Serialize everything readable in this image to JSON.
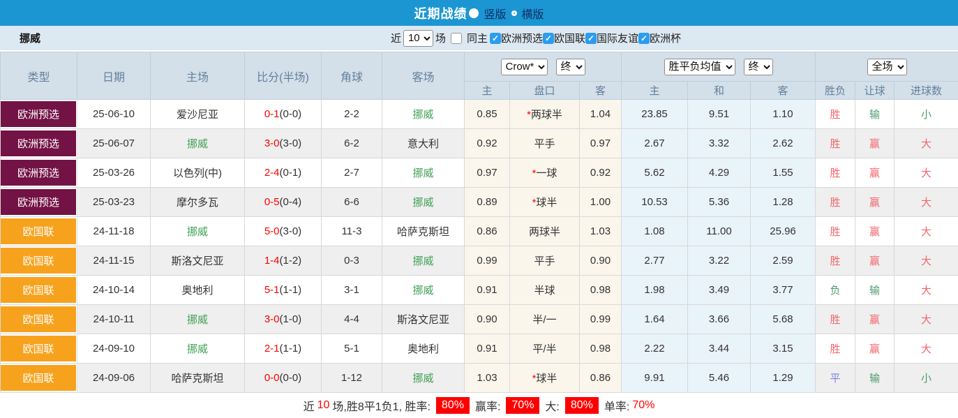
{
  "titlebar": {
    "title": "近期战绩",
    "radio_vertical": "竖版",
    "radio_horizontal": "横版"
  },
  "filterbar": {
    "team": "挪威",
    "recent_label": "近",
    "recent_count": "10",
    "matches_label": "场",
    "same_home_label": "同主",
    "competitions": [
      "欧洲预选",
      "欧国联",
      "国际友谊",
      "欧洲杯"
    ]
  },
  "table": {
    "selects": {
      "odds_company": "Crow*",
      "odds_state1": "终",
      "avg_type": "胜平负均值",
      "odds_state2": "终",
      "scope": "全场"
    },
    "columns": [
      "类型",
      "日期",
      "主场",
      "比分(半场)",
      "角球",
      "客场"
    ],
    "sub_columns": [
      "主",
      "盘口",
      "客",
      "主",
      "和",
      "客",
      "胜负",
      "让球",
      "进球数"
    ],
    "rows": [
      {
        "type": "欧洲预选",
        "type_class": "maroon",
        "date": "25-06-10",
        "home": "爱沙尼亚",
        "home_green": false,
        "score": "0-1",
        "half": "(0-0)",
        "corner": "2-2",
        "away": "挪威",
        "away_green": true,
        "odds_home": "0.85",
        "handicap_star": true,
        "handicap": "两球半",
        "odds_away": "1.04",
        "avg_home": "23.85",
        "avg_draw": "9.51",
        "avg_away": "1.10",
        "result": "胜",
        "result_color": "red",
        "bet": "输",
        "bet_color": "green",
        "goal": "小",
        "goal_color": "green"
      },
      {
        "type": "欧洲预选",
        "type_class": "maroon",
        "date": "25-06-07",
        "home": "挪威",
        "home_green": true,
        "score": "3-0",
        "half": "(3-0)",
        "corner": "6-2",
        "away": "意大利",
        "away_green": false,
        "odds_home": "0.92",
        "handicap_star": false,
        "handicap": "平手",
        "odds_away": "0.97",
        "avg_home": "2.67",
        "avg_draw": "3.32",
        "avg_away": "2.62",
        "result": "胜",
        "result_color": "red",
        "bet": "赢",
        "bet_color": "red",
        "goal": "大",
        "goal_color": "red"
      },
      {
        "type": "欧洲预选",
        "type_class": "maroon",
        "date": "25-03-26",
        "home": "以色列(中)",
        "home_green": false,
        "score": "2-4",
        "half": "(0-1)",
        "corner": "2-7",
        "away": "挪威",
        "away_green": true,
        "odds_home": "0.97",
        "handicap_star": true,
        "handicap": "一球",
        "odds_away": "0.92",
        "avg_home": "5.62",
        "avg_draw": "4.29",
        "avg_away": "1.55",
        "result": "胜",
        "result_color": "red",
        "bet": "赢",
        "bet_color": "red",
        "goal": "大",
        "goal_color": "red"
      },
      {
        "type": "欧洲预选",
        "type_class": "maroon",
        "date": "25-03-23",
        "home": "摩尔多瓦",
        "home_green": false,
        "score": "0-5",
        "half": "(0-4)",
        "corner": "6-6",
        "away": "挪威",
        "away_green": true,
        "odds_home": "0.89",
        "handicap_star": true,
        "handicap": "球半",
        "odds_away": "1.00",
        "avg_home": "10.53",
        "avg_draw": "5.36",
        "avg_away": "1.28",
        "result": "胜",
        "result_color": "red",
        "bet": "赢",
        "bet_color": "red",
        "goal": "大",
        "goal_color": "red"
      },
      {
        "type": "欧国联",
        "type_class": "orange",
        "date": "24-11-18",
        "home": "挪威",
        "home_green": true,
        "score": "5-0",
        "half": "(3-0)",
        "corner": "11-3",
        "away": "哈萨克斯坦",
        "away_green": false,
        "odds_home": "0.86",
        "handicap_star": false,
        "handicap": "两球半",
        "odds_away": "1.03",
        "avg_home": "1.08",
        "avg_draw": "11.00",
        "avg_away": "25.96",
        "result": "胜",
        "result_color": "red",
        "bet": "赢",
        "bet_color": "red",
        "goal": "大",
        "goal_color": "red"
      },
      {
        "type": "欧国联",
        "type_class": "orange",
        "date": "24-11-15",
        "home": "斯洛文尼亚",
        "home_green": false,
        "score": "1-4",
        "half": "(1-2)",
        "corner": "0-3",
        "away": "挪威",
        "away_green": true,
        "odds_home": "0.99",
        "handicap_star": false,
        "handicap": "平手",
        "odds_away": "0.90",
        "avg_home": "2.77",
        "avg_draw": "3.22",
        "avg_away": "2.59",
        "result": "胜",
        "result_color": "red",
        "bet": "赢",
        "bet_color": "red",
        "goal": "大",
        "goal_color": "red"
      },
      {
        "type": "欧国联",
        "type_class": "orange",
        "date": "24-10-14",
        "home": "奥地利",
        "home_green": false,
        "score": "5-1",
        "half": "(1-1)",
        "corner": "3-1",
        "away": "挪威",
        "away_green": true,
        "odds_home": "0.91",
        "handicap_star": false,
        "handicap": "半球",
        "odds_away": "0.98",
        "avg_home": "1.98",
        "avg_draw": "3.49",
        "avg_away": "3.77",
        "result": "负",
        "result_color": "green",
        "bet": "输",
        "bet_color": "green",
        "goal": "大",
        "goal_color": "red"
      },
      {
        "type": "欧国联",
        "type_class": "orange",
        "date": "24-10-11",
        "home": "挪威",
        "home_green": true,
        "score": "3-0",
        "half": "(1-0)",
        "corner": "4-4",
        "away": "斯洛文尼亚",
        "away_green": false,
        "odds_home": "0.90",
        "handicap_star": false,
        "handicap": "半/一",
        "odds_away": "0.99",
        "avg_home": "1.64",
        "avg_draw": "3.66",
        "avg_away": "5.68",
        "result": "胜",
        "result_color": "red",
        "bet": "赢",
        "bet_color": "red",
        "goal": "大",
        "goal_color": "red"
      },
      {
        "type": "欧国联",
        "type_class": "orange",
        "date": "24-09-10",
        "home": "挪威",
        "home_green": true,
        "score": "2-1",
        "half": "(1-1)",
        "corner": "5-1",
        "away": "奥地利",
        "away_green": false,
        "odds_home": "0.91",
        "handicap_star": false,
        "handicap": "平/半",
        "odds_away": "0.98",
        "avg_home": "2.22",
        "avg_draw": "3.44",
        "avg_away": "3.15",
        "result": "胜",
        "result_color": "red",
        "bet": "赢",
        "bet_color": "red",
        "goal": "大",
        "goal_color": "red"
      },
      {
        "type": "欧国联",
        "type_class": "orange",
        "date": "24-09-06",
        "home": "哈萨克斯坦",
        "home_green": false,
        "score": "0-0",
        "half": "(0-0)",
        "corner": "1-12",
        "away": "挪威",
        "away_green": true,
        "odds_home": "1.03",
        "handicap_star": true,
        "handicap": "球半",
        "odds_away": "0.86",
        "avg_home": "9.91",
        "avg_draw": "5.46",
        "avg_away": "1.29",
        "result": "平",
        "result_color": "blue",
        "bet": "输",
        "bet_color": "green",
        "goal": "小",
        "goal_color": "green"
      }
    ]
  },
  "footer": {
    "prefix": "近",
    "count": "10",
    "summary": "场,胜8平1负1, 胜率:",
    "win_rate": "80%",
    "bet_label": "赢率:",
    "bet_rate": "70%",
    "big_label": "大:",
    "big_rate": "80%",
    "single_label": "单率:",
    "single_rate": "70%"
  },
  "colors": {
    "header_blue": "#1c96d2",
    "filter_bg": "#dce8f2",
    "table_header_bg": "#d3dfe9",
    "badge_maroon": "#731245",
    "badge_orange": "#f7a21d",
    "odds_col_bg": "#faf6ec",
    "avg_col_bg": "#e9f3fa",
    "score_red": "#ff0000",
    "norway_green": "#3fa054",
    "result_red": "#f4656c",
    "result_green": "#4e9a6f",
    "result_blue": "#7c86e0",
    "footer_badge_red": "#ff0000"
  }
}
